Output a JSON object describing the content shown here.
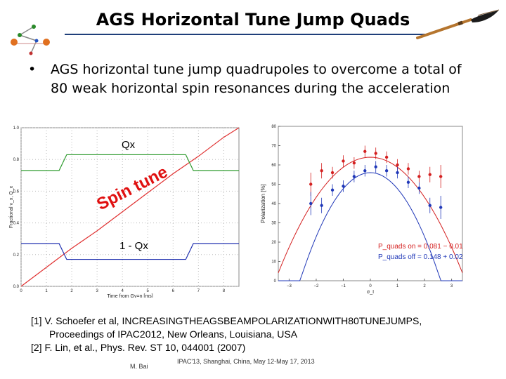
{
  "slide": {
    "title": "AGS Horizontal Tune Jump Quads",
    "bullet_line1": "AGS horizontal tune jump quadrupoles to overcome a total of",
    "bullet_line2": "80 weak horizontal spin resonances during the acceleration",
    "bullet_marker": "•"
  },
  "tune_plot": {
    "label_qx": "Qx",
    "label_1mqx": "1 - Qx",
    "label_spin_tune": "Spin tune",
    "colors": {
      "spin_tune": "#e03030",
      "qx": "#2c9a2c",
      "one_minus_qx": "#2030b0",
      "overlay_text": "#e01010"
    },
    "chart_data": {
      "type": "line",
      "xlabel": "Time from Gγ=n [ms]",
      "ylabel": "Fractional ν_x, Q_x",
      "x_ticks": [
        "0",
        "1",
        "2",
        "3",
        "4",
        "5",
        "6",
        "7",
        "8"
      ],
      "y_ticks": [
        "0.0",
        "0.2",
        "0.4",
        "0.6",
        "0.8",
        "1.0"
      ],
      "xlim": [
        0,
        8.6
      ],
      "ylim": [
        0,
        1
      ],
      "series": [
        {
          "name": "Spin tune",
          "x": [
            0,
            1,
            2,
            3,
            4,
            5,
            6,
            7,
            8,
            8.6
          ],
          "y": [
            0.0,
            0.12,
            0.24,
            0.35,
            0.47,
            0.59,
            0.71,
            0.82,
            0.94,
            1.0
          ]
        },
        {
          "name": "Qx",
          "x": [
            0,
            1.5,
            1.8,
            6.5,
            6.8,
            8.6
          ],
          "y": [
            0.73,
            0.73,
            0.83,
            0.83,
            0.73,
            0.73
          ]
        },
        {
          "name": "1 - Qx",
          "x": [
            0,
            1.5,
            1.8,
            6.5,
            6.8,
            8.6
          ],
          "y": [
            0.27,
            0.27,
            0.17,
            0.17,
            0.27,
            0.27
          ]
        }
      ]
    }
  },
  "pol_plot": {
    "legend_line1": "P_quads on = 0.081 − 0.01",
    "legend_line2": "P_quads off = 0.148 + 0.02",
    "colors": {
      "on": "#d42020",
      "off": "#2038b8"
    },
    "chart_data": {
      "type": "scatter",
      "xlabel": "σ_I",
      "ylabel": "Polarization [%]",
      "x_ticks": [
        "−3",
        "−2",
        "−1",
        "0",
        "1",
        "2",
        "3"
      ],
      "y_ticks": [
        "0",
        "10",
        "20",
        "30",
        "40",
        "50",
        "60",
        "70",
        "80"
      ],
      "xlim": [
        -3.4,
        3.4
      ],
      "ylim": [
        0,
        80
      ],
      "series": [
        {
          "name": "quads on",
          "x": [
            -2.2,
            -1.8,
            -1.4,
            -1.0,
            -0.6,
            -0.2,
            0.2,
            0.6,
            1.0,
            1.4,
            1.8,
            2.2,
            2.6
          ],
          "y": [
            50,
            57,
            56,
            62,
            61,
            67,
            66,
            64,
            60,
            58,
            54,
            55,
            54
          ],
          "err": [
            6,
            4,
            3,
            3,
            3,
            3,
            3,
            3,
            3,
            3,
            3,
            4,
            6
          ],
          "fit": {
            "amplitude": 64,
            "sigma_coef": 0.081
          }
        },
        {
          "name": "quads off",
          "x": [
            -2.2,
            -1.8,
            -1.4,
            -1.0,
            -0.6,
            -0.2,
            0.2,
            0.6,
            1.0,
            1.4,
            1.8,
            2.2,
            2.6
          ],
          "y": [
            40,
            39,
            47,
            49,
            54,
            57,
            59,
            57,
            56,
            51,
            48,
            39,
            38
          ],
          "err": [
            6,
            4,
            3,
            3,
            3,
            3,
            3,
            3,
            3,
            3,
            3,
            4,
            6
          ],
          "fit": {
            "amplitude": 56,
            "sigma_coef": 0.148
          }
        }
      ]
    }
  },
  "references": {
    "ref1_line1": "[1] V. Schoefer et al, INCREASINGTHEAGSBEAMPOLARIZATIONWITH80TUNEJUMPS,",
    "ref1_line2": "Proceedings of IPAC2012, New Orleans, Louisiana, USA",
    "ref2": "[2] F. Lin, et al., Phys. Rev. ST 10, 044001 (2007)"
  },
  "footer": {
    "author": "M. Bai",
    "conference": "IPAC'13, Shanghai, China, May 12-May 17, 2013"
  }
}
